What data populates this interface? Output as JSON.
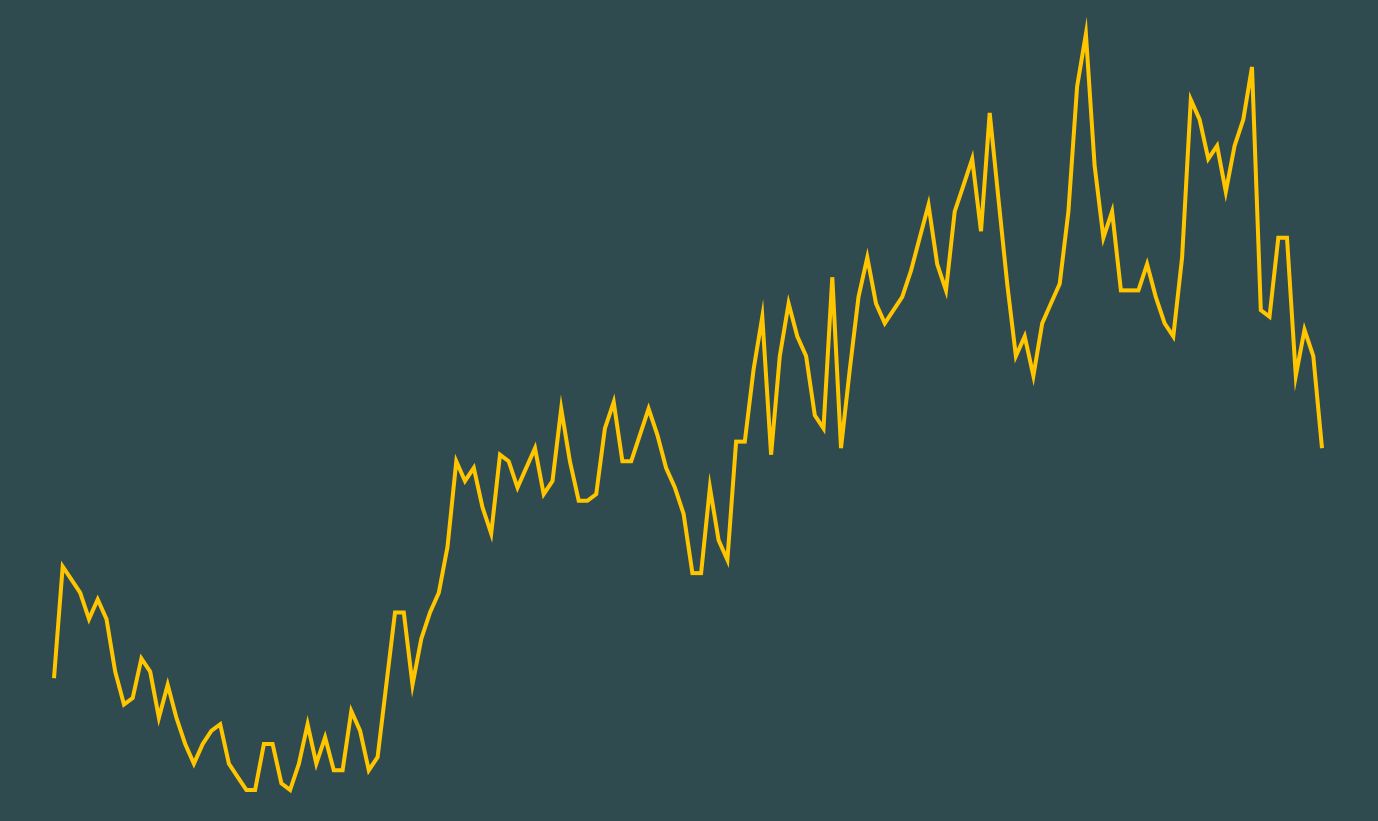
{
  "colors": {
    "background": "#2f4b50",
    "line": "#ffc600"
  },
  "chart_data": {
    "type": "line",
    "title": "",
    "xlabel": "",
    "ylabel": "",
    "grid": false,
    "legend": "none",
    "axes_visible": false,
    "series": [
      {
        "values": [
          1.7,
          3.4,
          3.2,
          3.0,
          2.6,
          2.9,
          2.6,
          1.8,
          1.3,
          1.4,
          2.0,
          1.8,
          1.1,
          1.6,
          1.1,
          0.7,
          0.4,
          0.7,
          0.9,
          1.0,
          0.4,
          0.2,
          0.0,
          0.0,
          0.7,
          0.7,
          0.1,
          0.0,
          0.4,
          1.0,
          0.4,
          0.8,
          0.3,
          0.3,
          1.2,
          0.9,
          0.3,
          0.5,
          1.6,
          2.7,
          2.7,
          1.6,
          2.3,
          2.7,
          3.0,
          3.7,
          5.0,
          4.7,
          4.9,
          4.3,
          3.9,
          5.1,
          5.0,
          4.6,
          4.9,
          5.2,
          4.5,
          4.7,
          5.8,
          5.0,
          4.4,
          4.4,
          4.5,
          5.5,
          5.9,
          5.0,
          5.0,
          5.4,
          5.8,
          5.4,
          4.9,
          4.6,
          4.2,
          3.3,
          3.3,
          4.6,
          3.8,
          3.5,
          5.3,
          5.3,
          6.4,
          7.2,
          5.1,
          6.6,
          7.4,
          6.9,
          6.6,
          5.7,
          5.5,
          7.8,
          5.2,
          6.4,
          7.5,
          8.1,
          7.4,
          7.1,
          7.3,
          7.5,
          7.9,
          8.4,
          8.9,
          8.0,
          7.6,
          8.8,
          9.2,
          9.6,
          8.5,
          10.3,
          9.0,
          7.7,
          6.6,
          6.9,
          6.3,
          7.1,
          7.4,
          7.7,
          8.8,
          10.7,
          11.5,
          9.5,
          8.4,
          8.8,
          7.6,
          7.6,
          7.6,
          8.0,
          7.5,
          7.1,
          6.9,
          8.1,
          10.5,
          10.2,
          9.6,
          9.8,
          9.1,
          9.8,
          10.2,
          11.0,
          7.3,
          7.2,
          8.4,
          8.4,
          6.3,
          7.0,
          6.6,
          5.2
        ]
      }
    ]
  }
}
